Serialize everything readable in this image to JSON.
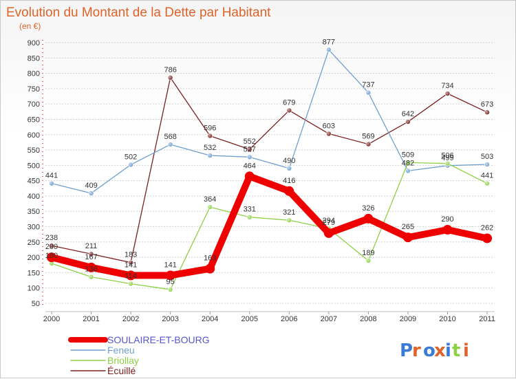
{
  "chart_data": {
    "type": "line",
    "title": "Evolution du Montant de la Dette par Habitant",
    "subtitle": "(en €)",
    "categories": [
      "2000",
      "2001",
      "2002",
      "2003",
      "2004",
      "2005",
      "2006",
      "2007",
      "2008",
      "2009",
      "2010",
      "2011"
    ],
    "ylim": [
      50,
      900
    ],
    "yticks": [
      50,
      100,
      150,
      200,
      250,
      300,
      350,
      400,
      450,
      500,
      550,
      600,
      650,
      700,
      750,
      800,
      850,
      900
    ],
    "grid": "horizontal dashed",
    "legend_position": "bottom-left",
    "series": [
      {
        "name": "SOULAIRE-ET-BOURG",
        "color": "#ee0000",
        "values": [
          200,
          167,
          141,
          141,
          163,
          464,
          416,
          279,
          326,
          265,
          290,
          262
        ]
      },
      {
        "name": "Feneu",
        "color": "#6f9fd0",
        "values": [
          441,
          409,
          502,
          568,
          532,
          527,
          490,
          877,
          737,
          482,
          499,
          503
        ]
      },
      {
        "name": "Briollay",
        "color": "#8ed045",
        "values": [
          180,
          136,
          114,
          95,
          364,
          331,
          321,
          294,
          189,
          509,
          506,
          441
        ]
      },
      {
        "name": "Écuillé",
        "color": "#7a2020",
        "values": [
          238,
          211,
          183,
          786,
          596,
          552,
          679,
          603,
          569,
          642,
          734,
          673
        ]
      }
    ]
  },
  "brand": {
    "logo_text": "Proxiti"
  }
}
